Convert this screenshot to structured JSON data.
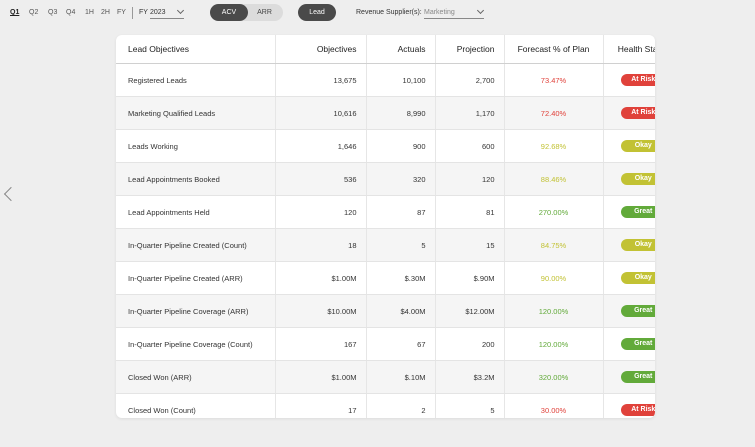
{
  "periods": [
    {
      "label": "Q1",
      "active": true
    },
    {
      "label": "Q2",
      "active": false
    },
    {
      "label": "Q3",
      "active": false
    },
    {
      "label": "Q4",
      "active": false
    },
    {
      "label": "1H",
      "active": false
    },
    {
      "label": "2H",
      "active": false
    },
    {
      "label": "FY",
      "active": false
    }
  ],
  "fiscal_year": {
    "label": "FY",
    "value": "2023"
  },
  "metric_toggle": {
    "options": [
      "ACV",
      "ARR"
    ],
    "selected": "ACV"
  },
  "lead_button": "Lead",
  "revenue_supplier": {
    "label": "Revenue Supplier(s):",
    "value": "Marketing"
  },
  "colors": {
    "at_risk": "#e0423b",
    "okay": "#c2c234",
    "great": "#62aa3a"
  },
  "table": {
    "headers": {
      "name": "Lead Objectives",
      "objectives": "Objectives",
      "actuals": "Actuals",
      "projection": "Projection",
      "forecast": "Forecast % of Plan",
      "health": "Health Status"
    },
    "rows": [
      {
        "name": "Registered Leads",
        "objectives": "13,675",
        "actuals": "10,100",
        "projection": "2,700",
        "forecast": "73.47%",
        "health": "At Risk"
      },
      {
        "name": "Marketing Qualified Leads",
        "objectives": "10,616",
        "actuals": "8,990",
        "projection": "1,170",
        "forecast": "72.40%",
        "health": "At Risk"
      },
      {
        "name": "Leads Working",
        "objectives": "1,646",
        "actuals": "900",
        "projection": "600",
        "forecast": "92.68%",
        "health": "Okay"
      },
      {
        "name": "Lead Appointments Booked",
        "objectives": "536",
        "actuals": "320",
        "projection": "120",
        "forecast": "88.46%",
        "health": "Okay"
      },
      {
        "name": "Lead Appointments Held",
        "objectives": "120",
        "actuals": "87",
        "projection": "81",
        "forecast": "270.00%",
        "health": "Great"
      },
      {
        "name": "In-Quarter Pipeline Created (Count)",
        "objectives": "18",
        "actuals": "5",
        "projection": "15",
        "forecast": "84.75%",
        "health": "Okay"
      },
      {
        "name": "In-Quarter Pipeline Created (ARR)",
        "objectives": "$1.00M",
        "actuals": "$.30M",
        "projection": "$.90M",
        "forecast": "90.00%",
        "health": "Okay"
      },
      {
        "name": "In-Quarter Pipeline Coverage (ARR)",
        "objectives": "$10.00M",
        "actuals": "$4.00M",
        "projection": "$12.00M",
        "forecast": "120.00%",
        "health": "Great"
      },
      {
        "name": "In-Quarter Pipeline Coverage (Count)",
        "objectives": "167",
        "actuals": "67",
        "projection": "200",
        "forecast": "120.00%",
        "health": "Great"
      },
      {
        "name": "Closed Won (ARR)",
        "objectives": "$1.00M",
        "actuals": "$.10M",
        "projection": "$3.2M",
        "forecast": "320.00%",
        "health": "Great"
      },
      {
        "name": "Closed Won (Count)",
        "objectives": "17",
        "actuals": "2",
        "projection": "5",
        "forecast": "30.00%",
        "health": "At Risk"
      }
    ]
  }
}
